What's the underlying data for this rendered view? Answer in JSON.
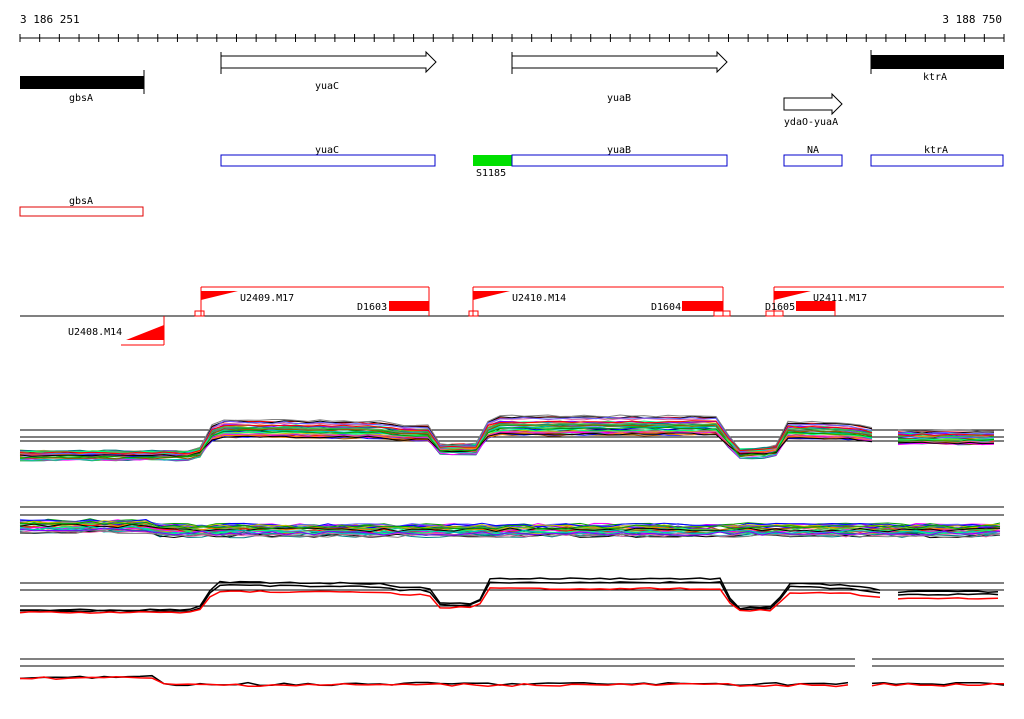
{
  "coordinates": {
    "start": "3 186 251",
    "end": "3 188 750"
  },
  "genes_top": {
    "gbsA": "gbsA",
    "yuaC": "yuaC",
    "yuaB": "yuaB",
    "ydaO_yuaA": "ydaO-yuaA",
    "ktrA": "ktrA"
  },
  "annotation_boxes": {
    "yuaC": "yuaC",
    "yuaB": "yuaB",
    "NA": "NA",
    "ktrA": "ktrA",
    "S1185": "S1185",
    "gbsA": "gbsA"
  },
  "features": {
    "U2409": "U2409.M17",
    "U2410": "U2410.M14",
    "U2411": "U2411.M17",
    "U2408": "U2408.M14",
    "D1603": "D1603",
    "D1604": "D1604",
    "D1605": "D1605"
  },
  "colors": {
    "gene_fill": "#000000",
    "annotation_blue": "#0000cc",
    "annotation_red": "#e00000",
    "green_box": "#00e000",
    "feature_red": "#ff0000"
  },
  "icons": [
    "arrow-right-icon",
    "flag-icon"
  ]
}
